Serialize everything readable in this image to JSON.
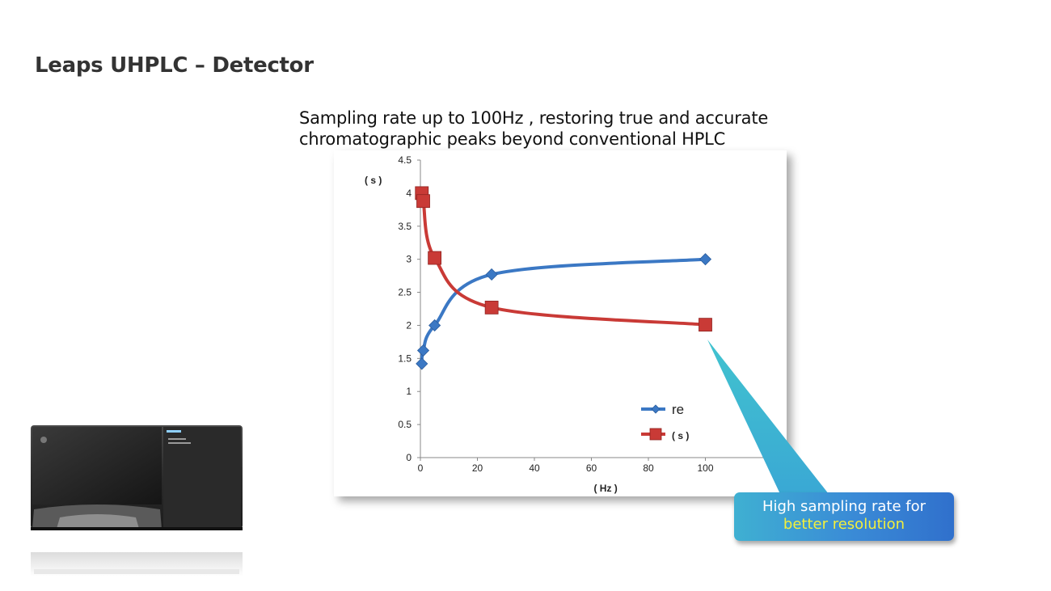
{
  "slide": {
    "title": "Leaps UHPLC – Detector",
    "subtitle_line1": "Sampling rate up to 100Hz , restoring true and accurate",
    "subtitle_line2": "chromatographic peaks beyond conventional HPLC"
  },
  "callout": {
    "line1": "High sampling rate for",
    "line2": "better resolution",
    "highlight_color": "#f2ef3c"
  },
  "chart_data": {
    "type": "line",
    "ylabel": "( s )",
    "xlabel": "( Hz )",
    "xlim": [
      0,
      120
    ],
    "ylim": [
      0,
      4.5
    ],
    "x_ticks": [
      "0",
      "20",
      "40",
      "60",
      "80",
      "100"
    ],
    "y_ticks": [
      "0",
      "0.5",
      "1",
      "1.5",
      "2",
      "2.5",
      "3",
      "3.5",
      "4",
      "4.5"
    ],
    "legend_position": "bottom-right",
    "series": [
      {
        "name": "re",
        "color": "#3b78c4",
        "marker": "diamond",
        "x": [
          0.5,
          1,
          5,
          25,
          100
        ],
        "y": [
          1.42,
          1.62,
          2.0,
          2.77,
          3.0
        ]
      },
      {
        "name": "( s )",
        "color": "#c93a36",
        "marker": "square",
        "x": [
          0.5,
          1,
          5,
          25,
          100
        ],
        "y": [
          4.0,
          3.88,
          3.02,
          2.27,
          2.01
        ]
      }
    ]
  }
}
